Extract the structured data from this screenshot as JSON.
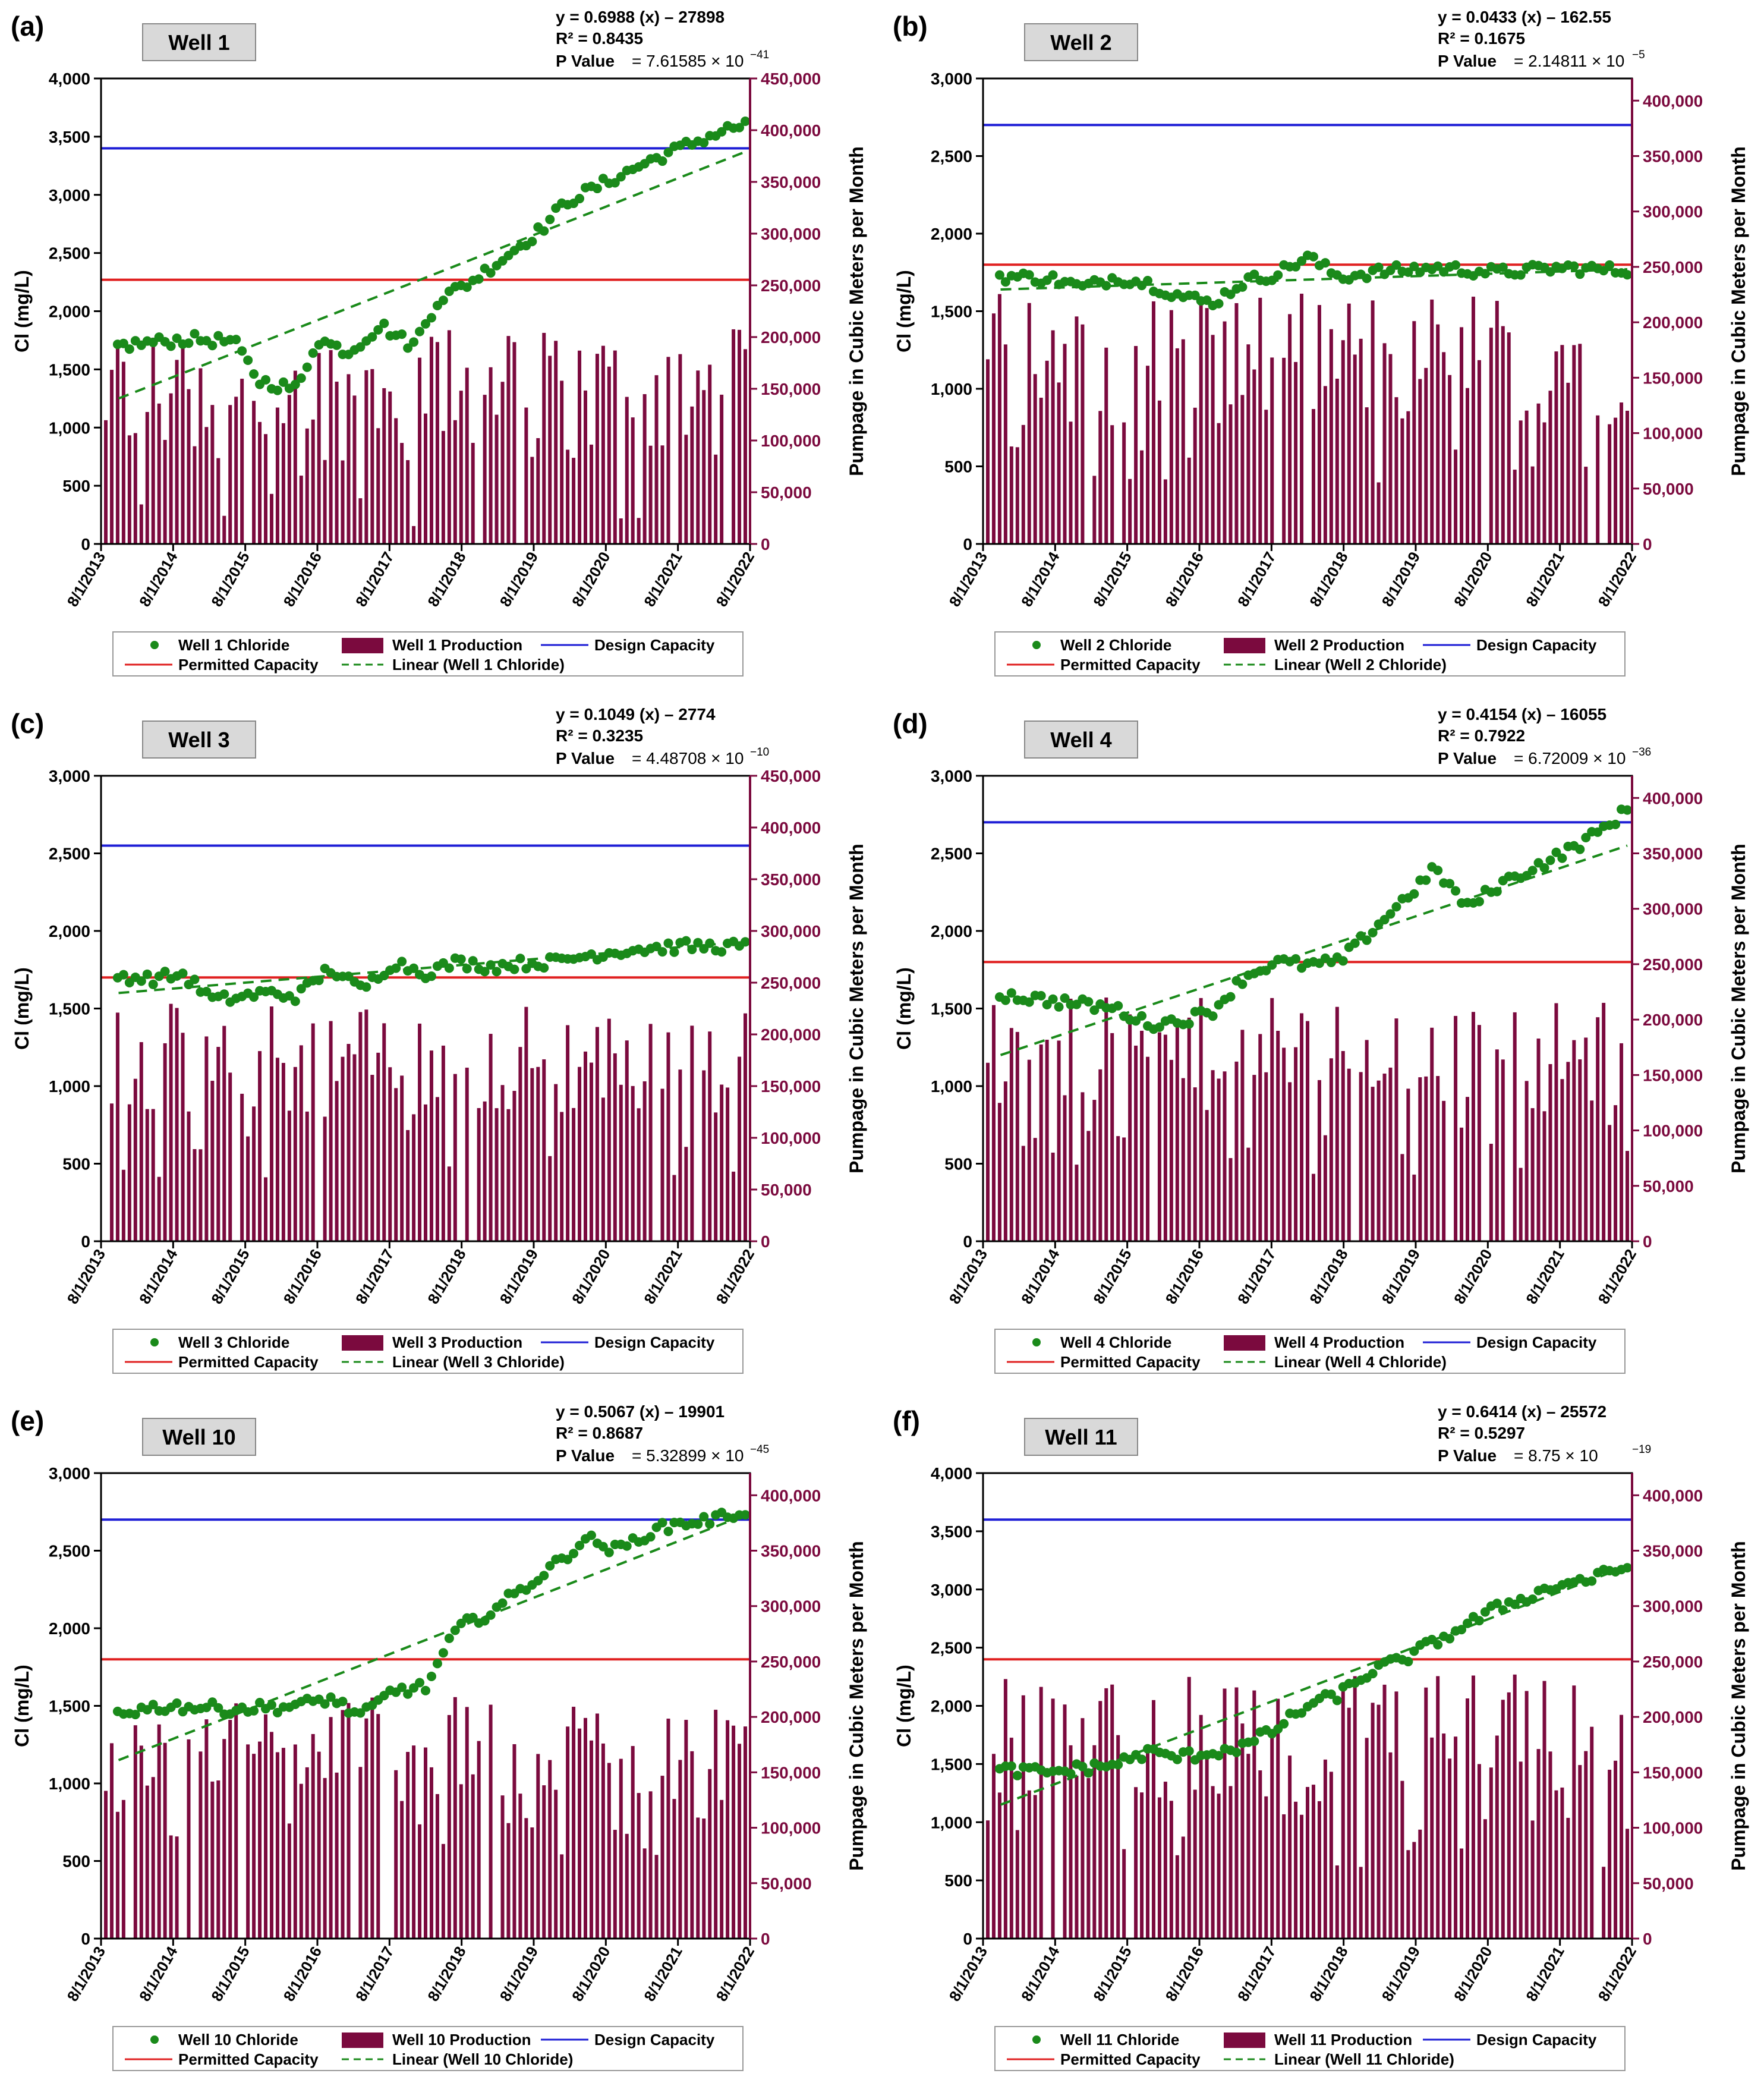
{
  "figure": {
    "x_tick_labels": [
      "8/1/2013",
      "8/1/2014",
      "8/1/2015",
      "8/1/2016",
      "8/1/2017",
      "8/1/2018",
      "8/1/2019",
      "8/1/2020",
      "8/1/2021",
      "8/1/2022"
    ],
    "left_axis_label": "Cl (mg/L)",
    "right_axis_label": "Pumpage in Cubic Meters per Month",
    "legend_labels": {
      "chloride_suffix": "Chloride",
      "production_suffix": "Production",
      "design": "Design Capacity",
      "permitted": "Permitted Capacity",
      "linear": "Linear (Well {n} Chloride)"
    },
    "colors": {
      "chloride": "#1a8a1a",
      "production": "#7b0a3e",
      "design": "#1f1fd6",
      "permitted": "#e02020",
      "trend": "#1a8a1a",
      "right_axis": "#7b0a3e"
    }
  },
  "chart_data": [
    {
      "panel": "(a)",
      "well": "Well 1",
      "type": "bar+scatter",
      "equation": "y = 0.6988 (x) – 27898",
      "r2": "R² = 0.8435",
      "p_value_label": "P Value",
      "p_value": "= 7.61585 × 10",
      "p_exp": "−41",
      "left_ticks": [
        "0",
        "500",
        "1,000",
        "1,500",
        "2,000",
        "2,500",
        "3,000",
        "3,500",
        "4,000"
      ],
      "right_ticks": [
        "0",
        "50,000",
        "100,000",
        "150,000",
        "200,000",
        "250,000",
        "300,000",
        "350,000",
        "400,000",
        "450,000"
      ],
      "left_max": 4000,
      "right_max": 450000,
      "design_capacity": 3400,
      "permitted_capacity": 2270,
      "trend": [
        1250,
        3370
      ],
      "pumpage_range": [
        10000,
        210000
      ],
      "chloride_keypoints": [
        [
          0,
          1690
        ],
        [
          0.07,
          1730
        ],
        [
          0.13,
          1760
        ],
        [
          0.2,
          1740
        ],
        [
          0.24,
          1400
        ],
        [
          0.3,
          1330
        ],
        [
          0.33,
          1760
        ],
        [
          0.38,
          1650
        ],
        [
          0.43,
          1880
        ],
        [
          0.48,
          1700
        ],
        [
          0.52,
          2100
        ],
        [
          0.57,
          2250
        ],
        [
          0.62,
          2450
        ],
        [
          0.68,
          2700
        ],
        [
          0.72,
          2940
        ],
        [
          0.78,
          3100
        ],
        [
          0.85,
          3290
        ],
        [
          0.92,
          3450
        ],
        [
          0.97,
          3560
        ],
        [
          1.0,
          3600
        ]
      ]
    },
    {
      "panel": "(b)",
      "well": "Well 2",
      "type": "bar+scatter",
      "equation": "y = 0.0433 (x) – 162.55",
      "r2": "R² = 0.1675",
      "p_value_label": "P Value",
      "p_value": "= 2.14811 × 10",
      "p_exp": "−5",
      "left_ticks": [
        "0",
        "500",
        "1,000",
        "1,500",
        "2,000",
        "2,500",
        "3,000"
      ],
      "right_ticks": [
        "0",
        "50,000",
        "100,000",
        "150,000",
        "200,000",
        "250,000",
        "300,000",
        "350,000",
        "400,000"
      ],
      "left_max": 3000,
      "right_max": 420000,
      "design_capacity": 2700,
      "permitted_capacity": 1800,
      "trend": [
        1640,
        1770
      ],
      "pumpage_range": [
        40000,
        230000
      ],
      "chloride_keypoints": [
        [
          0,
          1730
        ],
        [
          0.1,
          1710
        ],
        [
          0.15,
          1650
        ],
        [
          0.2,
          1720
        ],
        [
          0.25,
          1680
        ],
        [
          0.3,
          1600
        ],
        [
          0.35,
          1550
        ],
        [
          0.4,
          1690
        ],
        [
          0.45,
          1740
        ],
        [
          0.5,
          1850
        ],
        [
          0.55,
          1720
        ],
        [
          0.6,
          1750
        ],
        [
          0.7,
          1780
        ],
        [
          0.8,
          1750
        ],
        [
          0.9,
          1780
        ],
        [
          1.0,
          1760
        ]
      ]
    },
    {
      "panel": "(c)",
      "well": "Well 3",
      "type": "bar+scatter",
      "equation": "y = 0.1049 (x) – 2774",
      "r2": "R² = 0.3235",
      "p_value_label": "P Value",
      "p_value": "= 4.48708 × 10",
      "p_exp": "−10",
      "left_ticks": [
        "0",
        "500",
        "1,000",
        "1,500",
        "2,000",
        "2,500",
        "3,000"
      ],
      "right_ticks": [
        "0",
        "50,000",
        "100,000",
        "150,000",
        "200,000",
        "250,000",
        "300,000",
        "350,000",
        "400,000",
        "450,000"
      ],
      "left_max": 3000,
      "right_max": 450000,
      "design_capacity": 2550,
      "permitted_capacity": 1700,
      "trend": [
        1600,
        1930
      ],
      "pumpage_range": [
        60000,
        230000
      ],
      "chloride_keypoints": [
        [
          0,
          1720
        ],
        [
          0.07,
          1690
        ],
        [
          0.12,
          1720
        ],
        [
          0.17,
          1550
        ],
        [
          0.25,
          1600
        ],
        [
          0.3,
          1580
        ],
        [
          0.35,
          1760
        ],
        [
          0.4,
          1620
        ],
        [
          0.45,
          1800
        ],
        [
          0.5,
          1730
        ],
        [
          0.55,
          1800
        ],
        [
          0.6,
          1770
        ],
        [
          0.65,
          1790
        ],
        [
          0.7,
          1800
        ],
        [
          0.75,
          1840
        ],
        [
          0.82,
          1880
        ],
        [
          0.9,
          1900
        ],
        [
          1.0,
          1900
        ]
      ]
    },
    {
      "panel": "(d)",
      "well": "Well 4",
      "type": "bar+scatter",
      "equation": "y = 0.4154 (x) – 16055",
      "r2": "R² = 0.7922",
      "p_value_label": "P Value",
      "p_value": "= 6.72009 × 10",
      "p_exp": "−36",
      "left_ticks": [
        "0",
        "500",
        "1,000",
        "1,500",
        "2,000",
        "2,500",
        "3,000"
      ],
      "right_ticks": [
        "0",
        "50,000",
        "100,000",
        "150,000",
        "200,000",
        "250,000",
        "300,000",
        "350,000",
        "400,000"
      ],
      "left_max": 3000,
      "right_max": 420000,
      "design_capacity": 2700,
      "permitted_capacity": 1800,
      "trend": [
        1200,
        2550
      ],
      "pumpage_range": [
        60000,
        220000
      ],
      "chloride_keypoints": [
        [
          0,
          1600
        ],
        [
          0.1,
          1550
        ],
        [
          0.2,
          1500
        ],
        [
          0.25,
          1400
        ],
        [
          0.3,
          1420
        ],
        [
          0.35,
          1480
        ],
        [
          0.4,
          1700
        ],
        [
          0.45,
          1800
        ],
        [
          0.5,
          1780
        ],
        [
          0.55,
          1800
        ],
        [
          0.6,
          2000
        ],
        [
          0.65,
          2200
        ],
        [
          0.7,
          2400
        ],
        [
          0.75,
          2150
        ],
        [
          0.8,
          2300
        ],
        [
          0.85,
          2400
        ],
        [
          0.9,
          2500
        ],
        [
          0.95,
          2620
        ],
        [
          1.0,
          2780
        ]
      ]
    },
    {
      "panel": "(e)",
      "well": "Well 10",
      "type": "bar+scatter",
      "equation": "y = 0.5067 (x) – 19901",
      "r2": "R² = 0.8687",
      "p_value_label": "P Value",
      "p_value": "= 5.32899 × 10",
      "p_exp": "−45",
      "left_ticks": [
        "0",
        "500",
        "1,000",
        "1,500",
        "2,000",
        "2,500",
        "3,000"
      ],
      "right_ticks": [
        "0",
        "50,000",
        "100,000",
        "150,000",
        "200,000",
        "250,000",
        "300,000",
        "350,000",
        "400,000"
      ],
      "left_max": 3000,
      "right_max": 420000,
      "design_capacity": 2700,
      "permitted_capacity": 1800,
      "trend": [
        1150,
        2730
      ],
      "pumpage_range": [
        70000,
        220000
      ],
      "chloride_keypoints": [
        [
          0,
          1450
        ],
        [
          0.1,
          1500
        ],
        [
          0.2,
          1480
        ],
        [
          0.3,
          1500
        ],
        [
          0.35,
          1550
        ],
        [
          0.4,
          1430
        ],
        [
          0.45,
          1600
        ],
        [
          0.5,
          1620
        ],
        [
          0.55,
          2000
        ],
        [
          0.6,
          2100
        ],
        [
          0.65,
          2250
        ],
        [
          0.7,
          2400
        ],
        [
          0.75,
          2580
        ],
        [
          0.8,
          2500
        ],
        [
          0.85,
          2620
        ],
        [
          0.9,
          2680
        ],
        [
          0.95,
          2700
        ],
        [
          1.0,
          2760
        ]
      ]
    },
    {
      "panel": "(f)",
      "well": "Well 11",
      "type": "bar+scatter",
      "equation": "y = 0.6414 (x) – 25572",
      "r2": "R² = 0.5297",
      "p_value_label": "P Value",
      "p_value": "= 8.75 × 10",
      "p_exp": "−19",
      "left_ticks": [
        "0",
        "500",
        "1,000",
        "1,500",
        "2,000",
        "2,500",
        "3,000",
        "3,500",
        "4,000"
      ],
      "right_ticks": [
        "0",
        "50,000",
        "100,000",
        "150,000",
        "200,000",
        "250,000",
        "300,000",
        "350,000",
        "400,000"
      ],
      "left_max": 4000,
      "right_max": 420000,
      "design_capacity": 3600,
      "permitted_capacity": 2400,
      "trend": [
        1150,
        3200
      ],
      "pumpage_range": [
        60000,
        240000
      ],
      "chloride_keypoints": [
        [
          0,
          1450
        ],
        [
          0.1,
          1430
        ],
        [
          0.2,
          1500
        ],
        [
          0.25,
          1600
        ],
        [
          0.3,
          1560
        ],
        [
          0.35,
          1600
        ],
        [
          0.4,
          1650
        ],
        [
          0.45,
          1800
        ],
        [
          0.5,
          2000
        ],
        [
          0.55,
          2100
        ],
        [
          0.6,
          2300
        ],
        [
          0.65,
          2400
        ],
        [
          0.7,
          2550
        ],
        [
          0.75,
          2700
        ],
        [
          0.8,
          2850
        ],
        [
          0.85,
          2950
        ],
        [
          0.9,
          3050
        ],
        [
          0.95,
          3100
        ],
        [
          1.0,
          3200
        ]
      ]
    }
  ]
}
